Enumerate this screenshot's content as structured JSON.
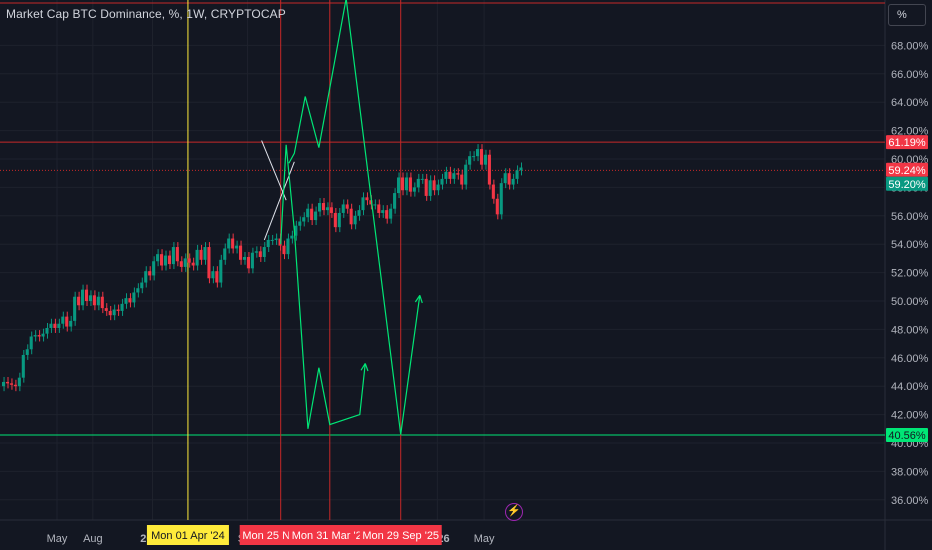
{
  "header": {
    "title": "Market Cap BTC Dominance, %, 1W, CRYPTOCAP",
    "unit_button": "%"
  },
  "chart_data": {
    "type": "candlestick",
    "title": "Market Cap BTC Dominance, %, 1W, CRYPTOCAP",
    "ylim": [
      35,
      71.5
    ],
    "y_ticks": [
      "36.00%",
      "38.00%",
      "40.00%",
      "42.00%",
      "44.00%",
      "46.00%",
      "48.00%",
      "50.00%",
      "52.00%",
      "54.00%",
      "56.00%",
      "58.00%",
      "60.00%",
      "62.00%",
      "64.00%",
      "66.00%",
      "68.00%"
    ],
    "x_ticks": [
      {
        "label": "May",
        "date": "2023-05-01",
        "bold": false
      },
      {
        "label": "Aug",
        "date": "2023-08-01",
        "bold": false
      },
      {
        "label": "2024",
        "date": "2024-01-01",
        "bold": true
      },
      {
        "label": "Sep",
        "date": "2024-09-01",
        "bold": false
      },
      {
        "label": "2026",
        "date": "2026-01-01",
        "bold": true
      },
      {
        "label": "May",
        "date": "2026-05-01",
        "bold": false
      }
    ],
    "closes": [
      44.3,
      44.2,
      44.1,
      44.0,
      44.6,
      46.2,
      46.6,
      47.5,
      47.6,
      47.5,
      47.7,
      48.1,
      48.4,
      48.1,
      48.4,
      48.9,
      48.2,
      48.6,
      50.3,
      49.7,
      50.8,
      50.0,
      50.4,
      49.7,
      50.3,
      49.5,
      49.3,
      49.0,
      49.4,
      49.3,
      49.8,
      50.2,
      49.9,
      50.6,
      50.9,
      51.3,
      52.1,
      51.8,
      52.8,
      53.3,
      52.5,
      53.2,
      52.6,
      53.8,
      52.8,
      52.4,
      53.0,
      52.7,
      52.5,
      53.6,
      52.9,
      53.8,
      51.6,
      52.1,
      51.3,
      52.9,
      53.7,
      54.4,
      53.7,
      53.9,
      52.9,
      53.1,
      52.3,
      53.4,
      53.5,
      53.1,
      53.8,
      54.3,
      54.3,
      54.4,
      53.9,
      53.3,
      54.4,
      54.6,
      55.3,
      55.6,
      55.9,
      56.5,
      55.7,
      56.3,
      56.9,
      56.4,
      56.6,
      56.2,
      55.2,
      56.2,
      56.8,
      56.5,
      55.4,
      56.0,
      56.4,
      57.3,
      57.1,
      56.8,
      56.8,
      56.2,
      56.4,
      55.8,
      56.5,
      57.6,
      58.7,
      57.8,
      58.7,
      57.7,
      58.0,
      58.6,
      58.6,
      57.4,
      58.5,
      57.8,
      58.2,
      58.6,
      59.1,
      58.6,
      59.0,
      58.9,
      58.2,
      59.6,
      60.2,
      60.2,
      60.7,
      59.6,
      60.3,
      58.2,
      57.2,
      56.1,
      58.3,
      59.0,
      58.2,
      58.6,
      59.2,
      59.4
    ],
    "annotations": {
      "price_labels": [
        {
          "text": "61.19%",
          "value": 61.19,
          "color": "#f23645"
        },
        {
          "text": "59.24%",
          "value": 59.24,
          "color": "#f23645"
        },
        {
          "text": "59.20%",
          "value": 59.2,
          "color": "#089981"
        },
        {
          "text": "40.56%",
          "value": 40.56,
          "color": "#00e676"
        }
      ],
      "date_labels": [
        {
          "text": "Mon 01 Apr '24",
          "date": "2024-04-01",
          "color": "#ffeb3b"
        },
        {
          "text": "Mon 25 Nov '24",
          "date": "2024-11-25",
          "color": "#f23645"
        },
        {
          "text": "Mon 31 Mar '25",
          "date": "2025-03-31",
          "color": "#f23645"
        },
        {
          "text": "Mon 29 Sep '25",
          "date": "2025-09-29",
          "color": "#f23645"
        }
      ],
      "projection_path": [
        [
          "2024-11-25",
          54.0
        ],
        [
          "2024-12-09",
          61.0
        ],
        [
          "2024-12-30",
          55.0
        ],
        [
          "2025-02-03",
          41.0
        ],
        [
          "2025-03-03",
          45.3
        ],
        [
          "2025-03-31",
          41.3
        ],
        [
          "2025-06-16",
          42.0
        ],
        [
          "2025-06-30",
          45.6
        ]
      ],
      "projection_path_2": [
        [
          "2024-12-16",
          59.7
        ],
        [
          "2024-12-30",
          60.4
        ],
        [
          "2025-01-27",
          64.4
        ],
        [
          "2025-03-03",
          60.8
        ],
        [
          "2025-05-12",
          71.3
        ],
        [
          "2025-09-29",
          40.6
        ],
        [
          "2025-11-17",
          50.4
        ]
      ],
      "triangle": [
        [
          "2024-10-07",
          61.3
        ],
        [
          "2024-12-09",
          57.1
        ],
        [
          "2024-10-14",
          54.3
        ],
        [
          "2024-12-30",
          59.8
        ]
      ]
    }
  },
  "colors": {
    "background": "#131722",
    "grid": "#1e222d",
    "up": "#089981",
    "down": "#f23645",
    "projection": "#00e676",
    "red_line": "#c62828",
    "yellow_line": "#ffeb3b"
  },
  "icons": {
    "bottom_marker": "lightning-icon"
  }
}
